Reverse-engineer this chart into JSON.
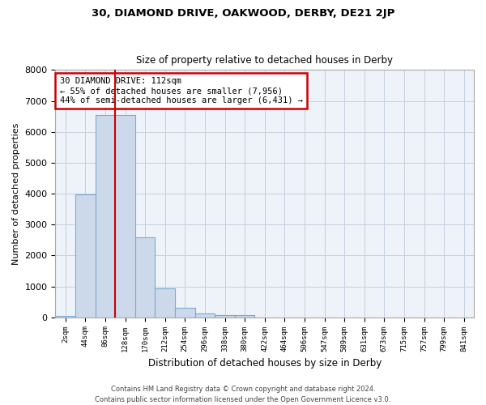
{
  "title": "30, DIAMOND DRIVE, OAKWOOD, DERBY, DE21 2JP",
  "subtitle": "Size of property relative to detached houses in Derby",
  "xlabel": "Distribution of detached houses by size in Derby",
  "ylabel": "Number of detached properties",
  "bar_color": "#ccd9ea",
  "bar_edge_color": "#7aaad0",
  "bg_color": "#eef2f9",
  "grid_color": "#c5cfe0",
  "categories": [
    "2sqm",
    "44sqm",
    "86sqm",
    "128sqm",
    "170sqm",
    "212sqm",
    "254sqm",
    "296sqm",
    "338sqm",
    "380sqm",
    "422sqm",
    "464sqm",
    "506sqm",
    "547sqm",
    "589sqm",
    "631sqm",
    "673sqm",
    "715sqm",
    "757sqm",
    "799sqm",
    "841sqm"
  ],
  "values": [
    55,
    3970,
    6530,
    6530,
    2580,
    930,
    300,
    120,
    70,
    65,
    0,
    0,
    0,
    0,
    0,
    0,
    0,
    0,
    0,
    0,
    0
  ],
  "ylim": [
    0,
    8000
  ],
  "yticks": [
    0,
    1000,
    2000,
    3000,
    4000,
    5000,
    6000,
    7000,
    8000
  ],
  "red_line_x": 2.5,
  "annotation_text": "30 DIAMOND DRIVE: 112sqm\n← 55% of detached houses are smaller (7,956)\n44% of semi-detached houses are larger (6,431) →",
  "annotation_box_color": "#ffffff",
  "annotation_border_color": "#cc0000",
  "footer_line1": "Contains HM Land Registry data © Crown copyright and database right 2024.",
  "footer_line2": "Contains public sector information licensed under the Open Government Licence v3.0."
}
